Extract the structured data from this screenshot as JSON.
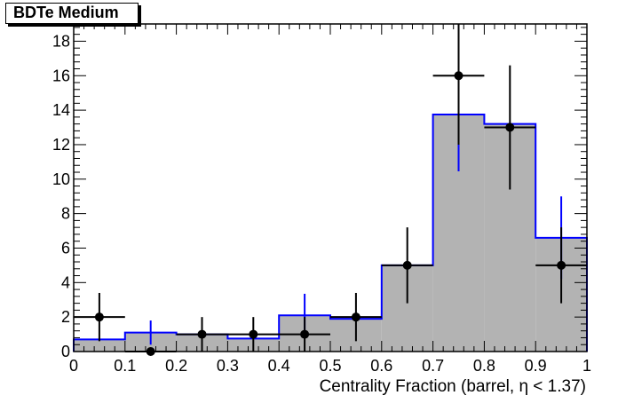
{
  "chart_data": {
    "type": "histogram",
    "title": "BDTe Medium",
    "xlabel": "Centrality Fraction (barrel,   η < 1.37)",
    "ylabel": "",
    "xlim": [
      0,
      1
    ],
    "ylim": [
      0,
      19
    ],
    "x_ticks": [
      "0",
      "0.1",
      "0.2",
      "0.3",
      "0.4",
      "0.5",
      "0.6",
      "0.7",
      "0.8",
      "0.9",
      "1"
    ],
    "y_ticks": [
      "0",
      "2",
      "4",
      "6",
      "8",
      "10",
      "12",
      "14",
      "16",
      "18"
    ],
    "bin_edges": [
      0,
      0.1,
      0.2,
      0.3,
      0.4,
      0.5,
      0.6,
      0.7,
      0.8,
      0.9,
      1.0
    ],
    "series": [
      {
        "style": "filled-histogram",
        "color": "#b3b3b3",
        "line_color": "#0000ff",
        "values": [
          0.7,
          1.1,
          1.0,
          0.75,
          2.1,
          1.9,
          5.0,
          13.75,
          13.2,
          6.6
        ],
        "errors": [
          0.0,
          0.7,
          0.0,
          0.0,
          1.25,
          0.0,
          0.0,
          3.3,
          0.0,
          2.4
        ]
      },
      {
        "style": "points",
        "color": "#000000",
        "x": [
          0.05,
          0.15,
          0.25,
          0.35,
          0.45,
          0.55,
          0.65,
          0.75,
          0.85,
          0.95
        ],
        "values": [
          2,
          0,
          1,
          1,
          1,
          2,
          5,
          16,
          13,
          5
        ],
        "err_low": [
          1.4,
          0,
          1.0,
          1.0,
          1.0,
          1.4,
          2.2,
          4.0,
          3.6,
          2.2
        ],
        "err_high": [
          1.4,
          0,
          1.0,
          1.0,
          1.0,
          1.4,
          2.2,
          4.0,
          3.6,
          2.2
        ]
      }
    ],
    "grid": false,
    "legend": "none"
  }
}
